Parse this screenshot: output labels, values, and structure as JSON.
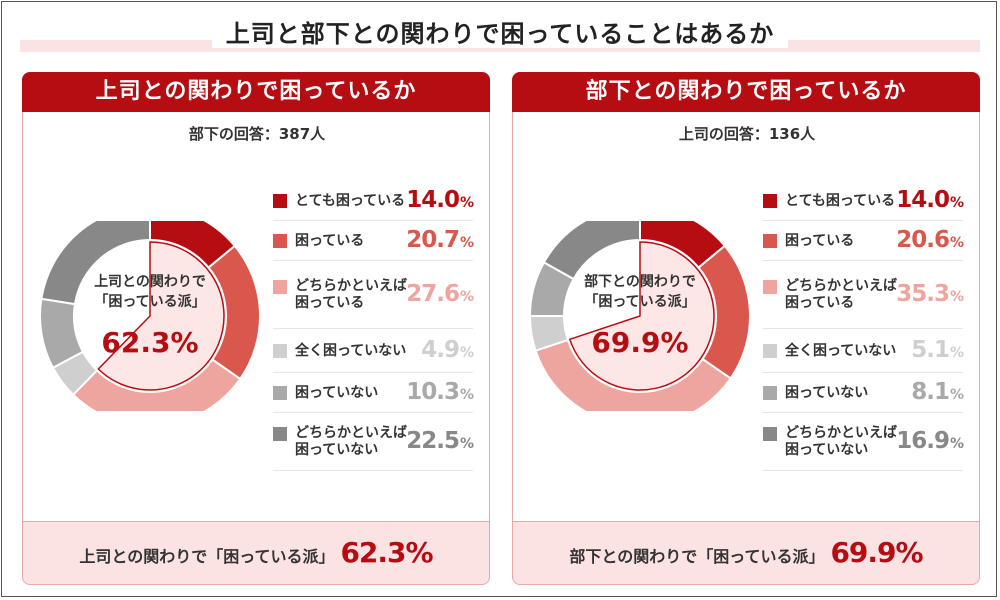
{
  "title": "上司と部下との関わりで困っていることはあるか",
  "colors": {
    "very": "#b50d12",
    "some": "#d9574c",
    "rather": "#eea59f",
    "not_at_all": "#cfcfcf",
    "not": "#a9a9a9",
    "rather_not": "#888888",
    "highlight_fill": "#fde6e6",
    "highlight_stroke": "#b50d12"
  },
  "chart_data": [
    {
      "type": "pie",
      "title": "上司との関わりで困っているか",
      "respondents": "部下の回答：387人",
      "center_label_lines": [
        "上司との関わりで",
        "「困っている派」"
      ],
      "center_value": "62.3%",
      "summary_label": "上司との関わりで「困っている派」",
      "summary_value": "62.3%",
      "categories": [
        "とても困っている",
        "困っている",
        "どちらかといえば困っている",
        "全く困っていない",
        "困っていない",
        "どちらかといえば困っていない"
      ],
      "label_lines": [
        [
          "とても困っている"
        ],
        [
          "困っている"
        ],
        [
          "どちらかといえば",
          "困っている"
        ],
        [
          "全く困っていない"
        ],
        [
          "困っていない"
        ],
        [
          "どちらかといえば",
          "困っていない"
        ]
      ],
      "values": [
        14.0,
        20.7,
        27.6,
        4.9,
        10.3,
        22.5
      ],
      "value_labels": [
        "14.0",
        "20.7",
        "27.6",
        "4.9",
        "10.3",
        "22.5"
      ]
    },
    {
      "type": "pie",
      "title": "部下との関わりで困っているか",
      "respondents": "上司の回答：136人",
      "center_label_lines": [
        "部下との関わりで",
        "「困っている派」"
      ],
      "center_value": "69.9%",
      "summary_label": "部下との関わりで「困っている派」",
      "summary_value": "69.9%",
      "categories": [
        "とても困っている",
        "困っている",
        "どちらかといえば困っている",
        "全く困っていない",
        "困っていない",
        "どちらかといえば困っていない"
      ],
      "label_lines": [
        [
          "とても困っている"
        ],
        [
          "困っている"
        ],
        [
          "どちらかといえば",
          "困っている"
        ],
        [
          "全く困っていない"
        ],
        [
          "困っていない"
        ],
        [
          "どちらかといえば",
          "困っていない"
        ]
      ],
      "values": [
        14.0,
        20.6,
        35.3,
        5.1,
        8.1,
        16.9
      ],
      "value_labels": [
        "14.0",
        "20.6",
        "35.3",
        "5.1",
        "8.1",
        "16.9"
      ]
    }
  ]
}
